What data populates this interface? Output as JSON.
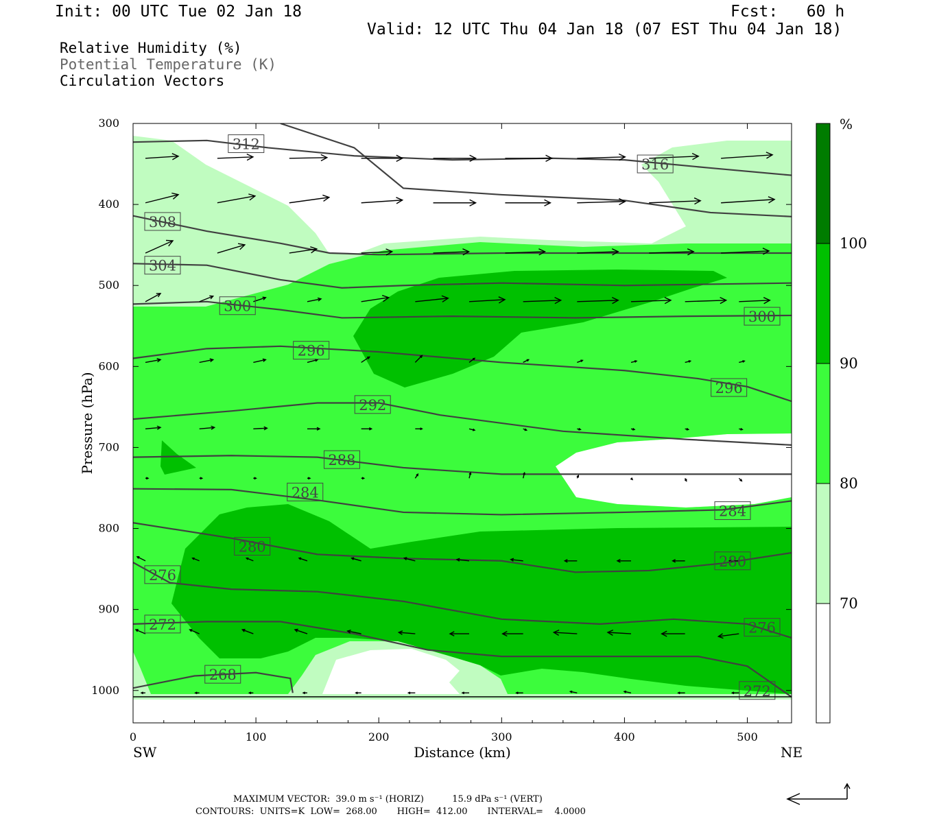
{
  "header": {
    "init": "Init: 00 UTC Tue 02 Jan 18",
    "fcst": "Fcst:   60 h",
    "valid": "Valid: 12 UTC Thu 04 Jan 18 (07 EST Thu 04 Jan 18)"
  },
  "legend": {
    "rh": "Relative Humidity (%)",
    "theta": "Potential Temperature (K)",
    "vectors": "Circulation Vectors"
  },
  "colors": {
    "rh_70_80": "#c0fcc0",
    "rh_80_90": "#3cfc3c",
    "rh_90_100": "#00c000",
    "rh_100": "#007c00",
    "contour": "#404040"
  },
  "colorbar": {
    "unit": "%",
    "levels": [
      "100",
      "90",
      "80",
      "70"
    ]
  },
  "footer": {
    "max_vector": "MAXIMUM VECTOR:  39.0 m s⁻¹ (HORIZ)          15.9 dPa s⁻¹ (VERT)",
    "contours": "CONTOURS:  UNITS=K  LOW=  268.00       HIGH=  412.00       INTERVAL=    4.0000"
  },
  "chart_data": {
    "type": "cross-section",
    "xlabel": "Distance (km)",
    "ylabel": "Pressure (hPa)",
    "xlim": [
      0,
      536
    ],
    "ylim": [
      300,
      1040
    ],
    "y_log_scale": false,
    "x_ticks": [
      "0",
      "100",
      "200",
      "300",
      "400",
      "500"
    ],
    "y_ticks": [
      "300",
      "400",
      "500",
      "600",
      "700",
      "800",
      "900",
      "1000"
    ],
    "endpoints": {
      "left": "SW",
      "right": "NE"
    },
    "theta_contours": [
      {
        "label": "312",
        "label_at": [
          92,
          325
        ],
        "points": [
          [
            120,
            300
          ],
          [
            180,
            330
          ],
          [
            220,
            380
          ],
          [
            300,
            388
          ],
          [
            400,
            395
          ],
          [
            470,
            410
          ],
          [
            536,
            415
          ]
        ]
      },
      {
        "label": "316",
        "label_at": [
          425,
          350
        ],
        "points": [
          [
            0,
            323
          ],
          [
            60,
            321
          ],
          [
            110,
            330
          ],
          [
            180,
            340
          ],
          [
            260,
            345
          ],
          [
            340,
            343
          ],
          [
            400,
            345
          ],
          [
            470,
            355
          ],
          [
            536,
            364
          ]
        ]
      },
      {
        "label": "308",
        "label_at": [
          24,
          421
        ],
        "points": [
          [
            0,
            414
          ],
          [
            60,
            433
          ],
          [
            120,
            448
          ],
          [
            160,
            460
          ],
          [
            200,
            462
          ],
          [
            300,
            460
          ],
          [
            400,
            460
          ],
          [
            536,
            460
          ]
        ]
      },
      {
        "label": "304",
        "label_at": [
          24,
          475
        ],
        "points": [
          [
            0,
            473
          ],
          [
            60,
            475
          ],
          [
            120,
            493
          ],
          [
            170,
            503
          ],
          [
            220,
            500
          ],
          [
            300,
            497
          ],
          [
            400,
            500
          ],
          [
            536,
            497
          ]
        ]
      },
      {
        "label": "300",
        "label_at": [
          85,
          525
        ],
        "points": [
          [
            0,
            523
          ],
          [
            60,
            520
          ],
          [
            120,
            530
          ],
          [
            170,
            540
          ],
          [
            260,
            538
          ],
          [
            360,
            540
          ],
          [
            450,
            538
          ],
          [
            536,
            537
          ]
        ]
      },
      {
        "label": "300",
        "label_at": [
          512,
          538
        ],
        "points": []
      },
      {
        "label": "296",
        "label_at": [
          145,
          580
        ],
        "points": [
          [
            0,
            590
          ],
          [
            60,
            578
          ],
          [
            120,
            575
          ],
          [
            200,
            582
          ],
          [
            300,
            595
          ],
          [
            400,
            605
          ],
          [
            460,
            615
          ],
          [
            500,
            625
          ],
          [
            536,
            643
          ]
        ]
      },
      {
        "label": "296",
        "label_at": [
          485,
          626
        ],
        "points": []
      },
      {
        "label": "292",
        "label_at": [
          195,
          647
        ],
        "points": [
          [
            0,
            665
          ],
          [
            80,
            655
          ],
          [
            150,
            645
          ],
          [
            200,
            645
          ],
          [
            250,
            660
          ],
          [
            350,
            680
          ],
          [
            450,
            690
          ],
          [
            536,
            697
          ]
        ]
      },
      {
        "label": "288",
        "label_at": [
          170,
          715
        ],
        "points": [
          [
            0,
            712
          ],
          [
            80,
            710
          ],
          [
            150,
            712
          ],
          [
            220,
            725
          ],
          [
            300,
            733
          ],
          [
            400,
            733
          ],
          [
            536,
            733
          ]
        ]
      },
      {
        "label": "284",
        "label_at": [
          140,
          755
        ],
        "points": [
          [
            0,
            751
          ],
          [
            80,
            752
          ],
          [
            150,
            765
          ],
          [
            220,
            780
          ],
          [
            300,
            783
          ],
          [
            400,
            780
          ],
          [
            480,
            777
          ],
          [
            536,
            766
          ]
        ]
      },
      {
        "label": "284",
        "label_at": [
          488,
          778
        ],
        "points": []
      },
      {
        "label": "280",
        "label_at": [
          97,
          822
        ],
        "points": [
          [
            0,
            793
          ],
          [
            80,
            812
          ],
          [
            150,
            832
          ],
          [
            220,
            837
          ],
          [
            300,
            840
          ],
          [
            360,
            854
          ],
          [
            420,
            852
          ],
          [
            480,
            843
          ],
          [
            536,
            830
          ]
        ]
      },
      {
        "label": "280",
        "label_at": [
          488,
          840
        ],
        "points": []
      },
      {
        "label": "276",
        "label_at": [
          24,
          857
        ],
        "points": [
          [
            0,
            842
          ],
          [
            30,
            867
          ],
          [
            80,
            875
          ],
          [
            150,
            878
          ],
          [
            220,
            890
          ],
          [
            300,
            912
          ],
          [
            380,
            918
          ],
          [
            440,
            912
          ],
          [
            500,
            918
          ],
          [
            536,
            935
          ]
        ]
      },
      {
        "label": "276",
        "label_at": [
          512,
          922
        ],
        "points": []
      },
      {
        "label": "272",
        "label_at": [
          24,
          918
        ],
        "points": [
          [
            0,
            918
          ],
          [
            60,
            915
          ],
          [
            120,
            915
          ],
          [
            180,
            930
          ],
          [
            240,
            950
          ],
          [
            300,
            958
          ],
          [
            380,
            958
          ],
          [
            460,
            958
          ],
          [
            500,
            970
          ],
          [
            536,
            1008
          ]
        ]
      },
      {
        "label": "272",
        "label_at": [
          508,
          1000
        ],
        "points": []
      },
      {
        "label": "268",
        "label_at": [
          73,
          980
        ],
        "points": [
          [
            0,
            997
          ],
          [
            50,
            982
          ],
          [
            100,
            978
          ],
          [
            128,
            985
          ],
          [
            130,
            1003
          ]
        ]
      }
    ],
    "rh_regions": [
      {
        "level": "70-80"
      },
      {
        "level": "80-90"
      },
      {
        "level": "90-100"
      }
    ]
  }
}
